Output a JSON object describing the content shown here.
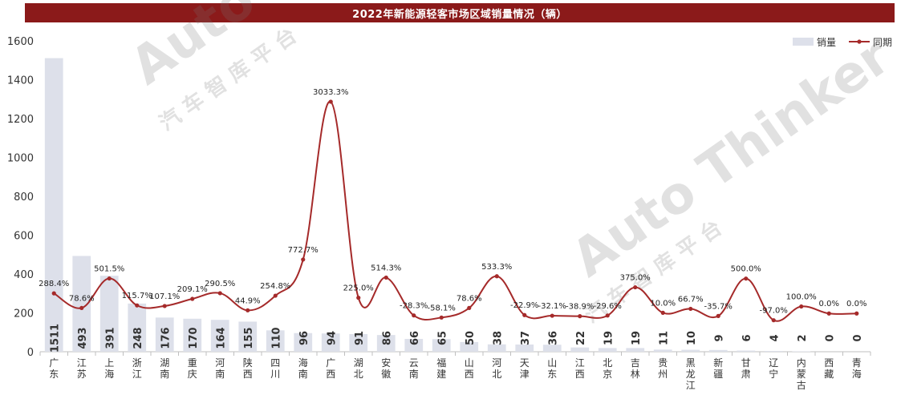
{
  "chart_data": {
    "type": "bar",
    "title": "2022年新能源轻客市场区域销量情况（辆）",
    "categories": [
      "广东",
      "江苏",
      "上海",
      "浙江",
      "湖南",
      "重庆",
      "河南",
      "陕西",
      "四川",
      "海南",
      "广西",
      "湖北",
      "安徽",
      "云南",
      "福建",
      "山西",
      "河北",
      "天津",
      "山东",
      "江西",
      "北京",
      "吉林",
      "贵州",
      "黑龙江",
      "新疆",
      "甘肃",
      "辽宁",
      "内蒙古",
      "西藏",
      "青海"
    ],
    "series": [
      {
        "name": "销量",
        "type": "bar",
        "values": [
          1511,
          493,
          391,
          248,
          176,
          170,
          164,
          155,
          110,
          96,
          94,
          91,
          86,
          66,
          65,
          50,
          38,
          37,
          36,
          22,
          19,
          19,
          11,
          10,
          9,
          6,
          4,
          2,
          0,
          0
        ]
      },
      {
        "name": "同期",
        "type": "line",
        "axis": "secondary-hidden",
        "values": [
          288.4,
          78.6,
          501.5,
          115.7,
          107.1,
          209.1,
          290.5,
          44.9,
          254.8,
          772.7,
          3033.3,
          225.0,
          514.3,
          -28.3,
          -58.1,
          78.6,
          533.3,
          -22.9,
          -32.1,
          -38.9,
          -29.6,
          375.0,
          10.0,
          66.7,
          -35.7,
          500.0,
          -97.0,
          100.0,
          0.0,
          0.0
        ],
        "labels": [
          "288.4%",
          "78.6%",
          "501.5%",
          "115.7%",
          "107.1%",
          "209.1%",
          "290.5%",
          "44.9%",
          "254.8%",
          "772.7%",
          "3033.3%",
          "225.0%",
          "514.3%",
          "-28.3%",
          "-58.1%",
          "78.6%",
          "533.3%",
          "-22.9%",
          "-32.1%",
          "-38.9%",
          "-29.6%",
          "375.0%",
          "10.0%",
          "66.7%",
          "-35.7%",
          "500.0%",
          "-97.0%",
          "100.0%",
          "0.0%",
          "0.0%"
        ]
      }
    ],
    "ylim": [
      0,
      1600
    ],
    "yticks": [
      "0",
      "200",
      "400",
      "600",
      "800",
      "1000",
      "1200",
      "1400",
      "1600"
    ],
    "legend_position": "top-right",
    "grid": false,
    "colors": {
      "bar": "#dde0ea",
      "line": "#a52a2a",
      "title_bg": "#8b1a1a"
    }
  },
  "watermark": {
    "brand": "Auto Thinker",
    "cn": "汽 车 智 库 平 台"
  }
}
